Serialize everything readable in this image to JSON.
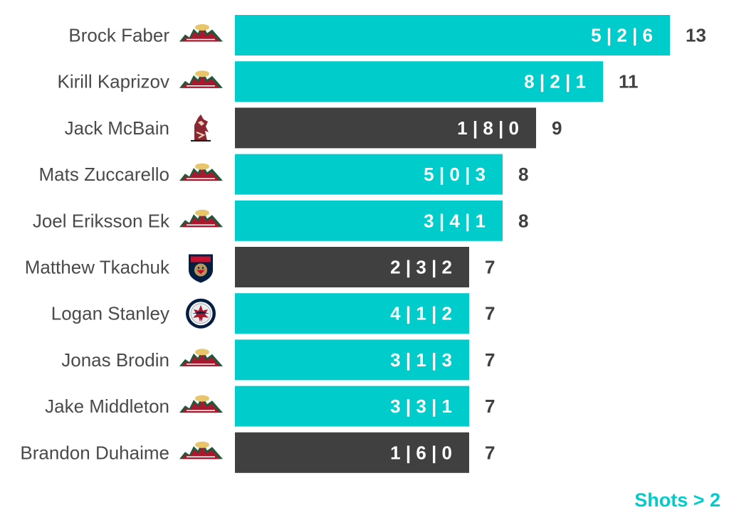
{
  "chart_data": {
    "type": "bar",
    "orientation": "horizontal",
    "categories": [
      "Brock Faber",
      "Kirill Kaprizov",
      "Jack McBain",
      "Mats Zuccarello",
      "Joel Eriksson Ek",
      "Matthew Tkachuk",
      "Logan Stanley",
      "Jonas Brodin",
      "Jake Middleton",
      "Brandon Duhaime"
    ],
    "values": [
      13,
      11,
      9,
      8,
      8,
      7,
      7,
      7,
      7,
      7
    ],
    "bar_labels": [
      "5 | 2 | 6",
      "8 | 2 | 1",
      "1 | 8 | 0",
      "5 | 0 | 3",
      "3 | 4 | 1",
      "2 | 3 | 2",
      "4 | 1 | 2",
      "3 | 1 | 3",
      "3 | 3 | 1",
      "1 | 6 | 0"
    ],
    "bar_colors": [
      "#00CCCC",
      "#00CCCC",
      "#404040",
      "#00CCCC",
      "#00CCCC",
      "#404040",
      "#00CCCC",
      "#00CCCC",
      "#00CCCC",
      "#404040"
    ],
    "team_icons": [
      "minnesota-wild-logo-icon",
      "minnesota-wild-logo-icon",
      "arizona-coyotes-logo-icon",
      "minnesota-wild-logo-icon",
      "minnesota-wild-logo-icon",
      "florida-panthers-logo-icon",
      "winnipeg-jets-logo-icon",
      "minnesota-wild-logo-icon",
      "minnesota-wild-logo-icon",
      "minnesota-wild-logo-icon"
    ],
    "xlim": [
      0,
      13
    ],
    "grid": false,
    "legend": "none"
  },
  "footnote": "Shots > 2"
}
